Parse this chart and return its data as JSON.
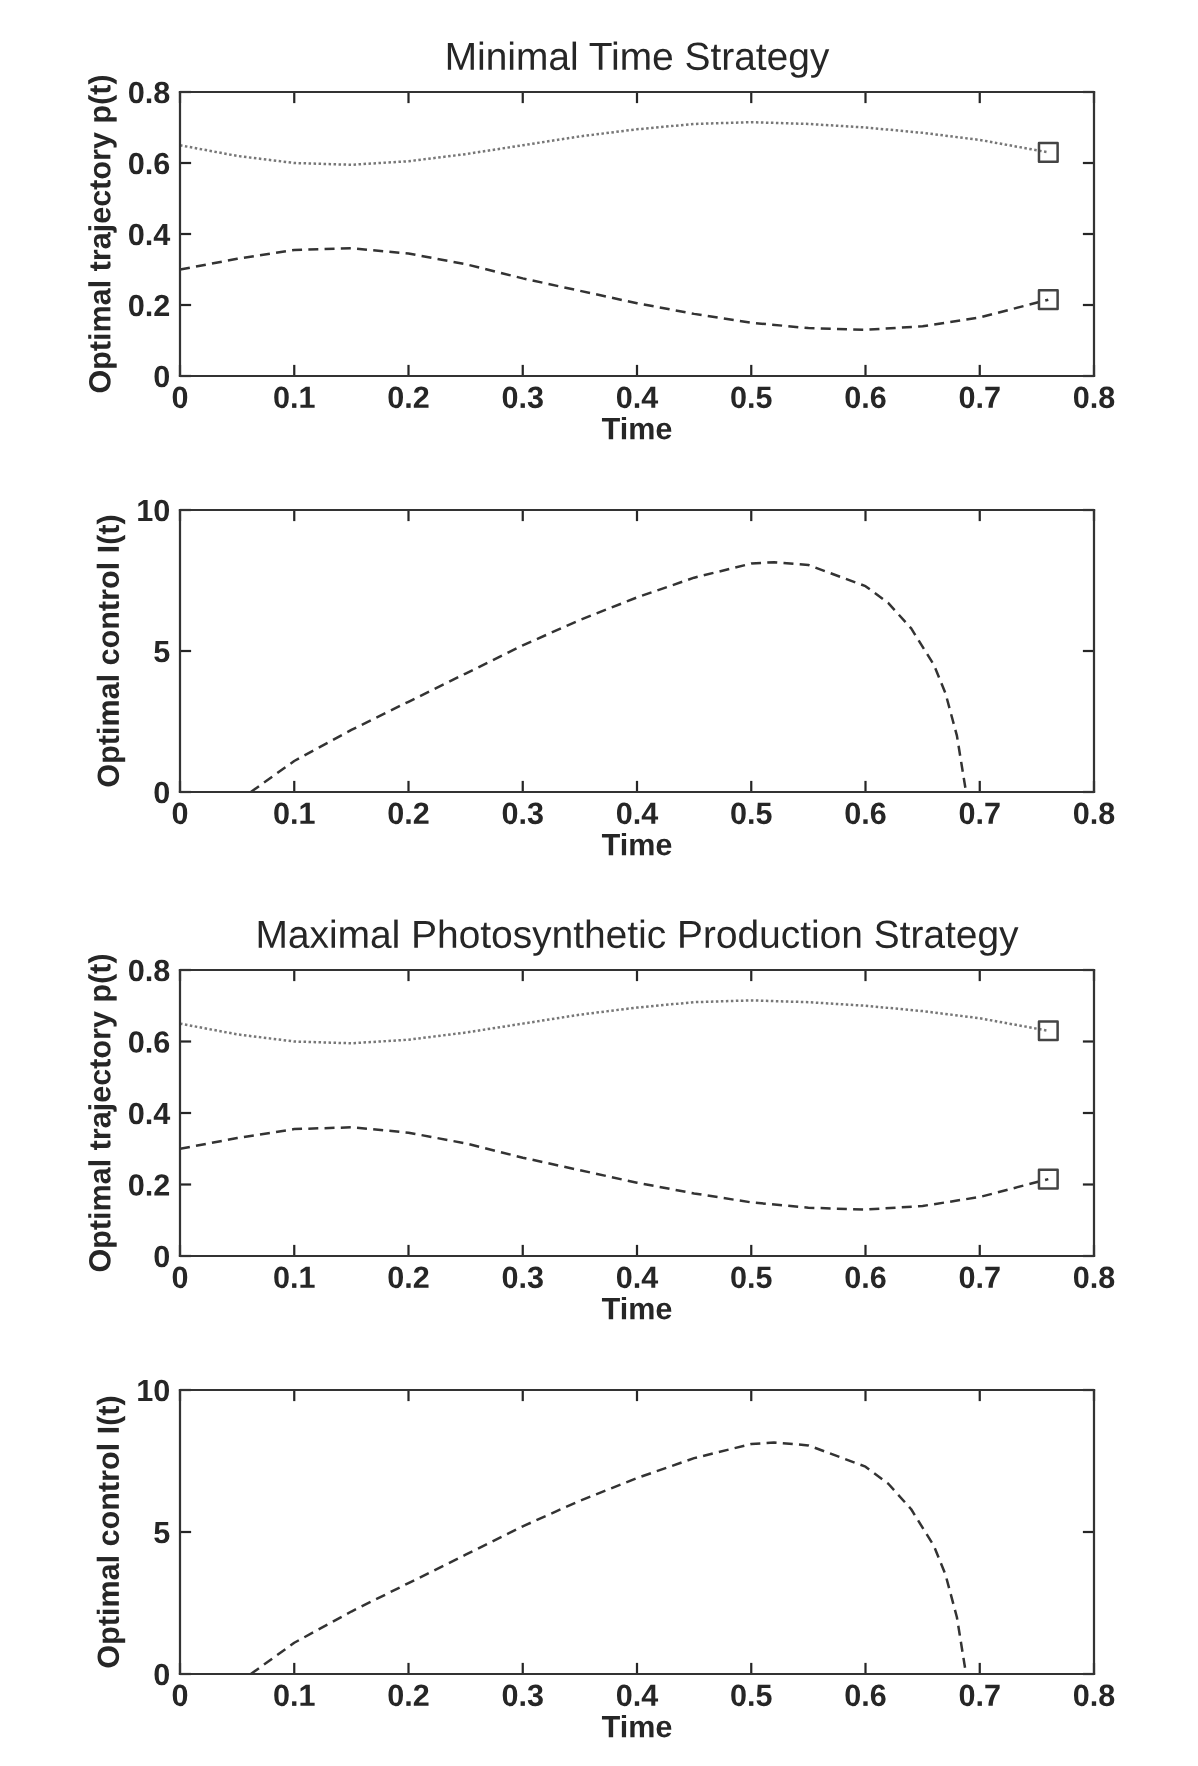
{
  "chart_data": [
    {
      "type": "line",
      "title": "Minimal Time Strategy",
      "xlabel": "Time",
      "ylabel": "Optimal trajectory p(t)",
      "xlim": [
        0,
        0.8
      ],
      "xticks": [
        0,
        0.1,
        0.2,
        0.3,
        0.4,
        0.5,
        0.6,
        0.7,
        0.8
      ],
      "ylim": [
        0,
        0.8
      ],
      "yticks": [
        0,
        0.2,
        0.4,
        0.6,
        0.8
      ],
      "grid": false,
      "legend": false,
      "series": [
        {
          "color": "#777777",
          "line_style": "dotted",
          "x": [
            0,
            0.05,
            0.1,
            0.15,
            0.2,
            0.25,
            0.3,
            0.35,
            0.4,
            0.45,
            0.5,
            0.55,
            0.6,
            0.65,
            0.7,
            0.76
          ],
          "values": [
            0.65,
            0.62,
            0.6,
            0.595,
            0.605,
            0.625,
            0.65,
            0.675,
            0.695,
            0.71,
            0.715,
            0.71,
            0.7,
            0.685,
            0.665,
            0.63
          ]
        },
        {
          "color": "#333333",
          "line_style": "dashed",
          "x": [
            0,
            0.05,
            0.1,
            0.15,
            0.2,
            0.25,
            0.3,
            0.35,
            0.4,
            0.45,
            0.5,
            0.55,
            0.6,
            0.65,
            0.7,
            0.76
          ],
          "values": [
            0.3,
            0.33,
            0.355,
            0.36,
            0.345,
            0.315,
            0.275,
            0.24,
            0.205,
            0.175,
            0.15,
            0.135,
            0.13,
            0.14,
            0.165,
            0.215
          ]
        },
        {
          "type": "scatter",
          "color": "#444444",
          "marker": "square",
          "x": [
            0.76,
            0.76
          ],
          "values": [
            0.63,
            0.215
          ]
        }
      ]
    },
    {
      "type": "line",
      "xlabel": "Time",
      "ylabel": "Optimal control I(t)",
      "xlim": [
        0,
        0.8
      ],
      "xticks": [
        0,
        0.1,
        0.2,
        0.3,
        0.4,
        0.5,
        0.6,
        0.7,
        0.8
      ],
      "ylim": [
        0,
        10
      ],
      "yticks": [
        0,
        5,
        10
      ],
      "grid": false,
      "legend": false,
      "series": [
        {
          "color": "#333333",
          "line_style": "dashed",
          "x": [
            0.062,
            0.1,
            0.15,
            0.2,
            0.25,
            0.3,
            0.35,
            0.4,
            0.45,
            0.5,
            0.52,
            0.55,
            0.6,
            0.62,
            0.64,
            0.66,
            0.67,
            0.68,
            0.688
          ],
          "values": [
            0,
            1.1,
            2.2,
            3.2,
            4.2,
            5.2,
            6.1,
            6.9,
            7.6,
            8.1,
            8.15,
            8.05,
            7.3,
            6.7,
            5.8,
            4.5,
            3.5,
            2.0,
            0
          ]
        }
      ]
    },
    {
      "type": "line",
      "title": "Maximal Photosynthetic Production Strategy",
      "xlabel": "Time",
      "ylabel": "Optimal trajectory p(t)",
      "xlim": [
        0,
        0.8
      ],
      "xticks": [
        0,
        0.1,
        0.2,
        0.3,
        0.4,
        0.5,
        0.6,
        0.7,
        0.8
      ],
      "ylim": [
        0,
        0.8
      ],
      "yticks": [
        0,
        0.2,
        0.4,
        0.6,
        0.8
      ],
      "grid": false,
      "legend": false,
      "series": [
        {
          "color": "#777777",
          "line_style": "dotted",
          "x": [
            0,
            0.05,
            0.1,
            0.15,
            0.2,
            0.25,
            0.3,
            0.35,
            0.4,
            0.45,
            0.5,
            0.55,
            0.6,
            0.65,
            0.7,
            0.76
          ],
          "values": [
            0.65,
            0.62,
            0.6,
            0.595,
            0.605,
            0.625,
            0.65,
            0.675,
            0.695,
            0.71,
            0.715,
            0.71,
            0.7,
            0.685,
            0.665,
            0.63
          ]
        },
        {
          "color": "#333333",
          "line_style": "dashed",
          "x": [
            0,
            0.05,
            0.1,
            0.15,
            0.2,
            0.25,
            0.3,
            0.35,
            0.4,
            0.45,
            0.5,
            0.55,
            0.6,
            0.65,
            0.7,
            0.76
          ],
          "values": [
            0.3,
            0.33,
            0.355,
            0.36,
            0.345,
            0.315,
            0.275,
            0.24,
            0.205,
            0.175,
            0.15,
            0.135,
            0.13,
            0.14,
            0.165,
            0.215
          ]
        },
        {
          "type": "scatter",
          "color": "#444444",
          "marker": "square",
          "x": [
            0.76,
            0.76
          ],
          "values": [
            0.63,
            0.215
          ]
        }
      ]
    },
    {
      "type": "line",
      "xlabel": "Time",
      "ylabel": "Optimal control I(t)",
      "xlim": [
        0,
        0.8
      ],
      "xticks": [
        0,
        0.1,
        0.2,
        0.3,
        0.4,
        0.5,
        0.6,
        0.7,
        0.8
      ],
      "ylim": [
        0,
        10
      ],
      "yticks": [
        0,
        5,
        10
      ],
      "grid": false,
      "legend": false,
      "series": [
        {
          "color": "#333333",
          "line_style": "dashed",
          "x": [
            0.062,
            0.1,
            0.15,
            0.2,
            0.25,
            0.3,
            0.35,
            0.4,
            0.45,
            0.5,
            0.52,
            0.55,
            0.6,
            0.62,
            0.64,
            0.66,
            0.67,
            0.68,
            0.688
          ],
          "values": [
            0,
            1.1,
            2.2,
            3.2,
            4.2,
            5.2,
            6.1,
            6.9,
            7.6,
            8.1,
            8.15,
            8.05,
            7.3,
            6.7,
            5.8,
            4.5,
            3.5,
            2.0,
            0
          ]
        }
      ]
    }
  ]
}
